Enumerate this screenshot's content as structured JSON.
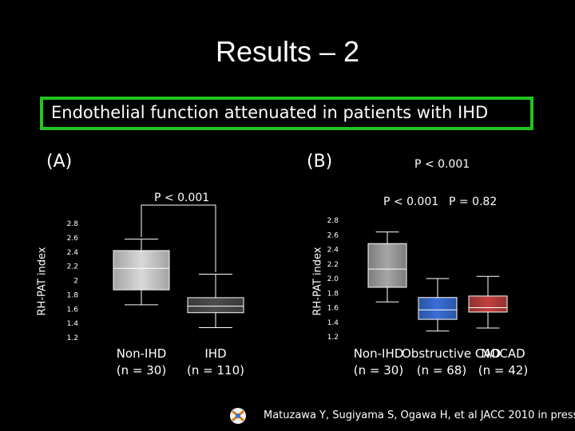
{
  "slide": {
    "title": "Results – 2",
    "banner": "Endothelial function attenuated in patients with IHD",
    "citation": "Matuzawa Y, Sugiyama S, Ogawa H, et al JACC 2010 in press",
    "colors": {
      "banner_border": "#22c422",
      "background": "#000000",
      "text": "#ffffff"
    }
  },
  "chart_data": [
    {
      "type": "box",
      "panel_label": "(A)",
      "ylabel": "RH-PAT index",
      "ylim": [
        1.2,
        2.8
      ],
      "yticks": [
        "2.8",
        "2.6",
        "2.4",
        "2.2",
        "2",
        "1.8",
        "1.6",
        "1.4",
        "1.2"
      ],
      "significance": [
        "P < 0.001"
      ],
      "categories": [
        {
          "name": "Non-IHD",
          "n": "(n = 30)"
        },
        {
          "name": "IHD",
          "n": "(n = 110)"
        }
      ],
      "series": [
        {
          "name": "Non-IHD",
          "whisker_low": 1.66,
          "q1": 1.87,
          "median": 2.17,
          "q3": 2.42,
          "whisker_high": 2.58,
          "color": "#d9d9d9"
        },
        {
          "name": "IHD",
          "whisker_low": 1.34,
          "q1": 1.55,
          "median": 1.64,
          "q3": 1.76,
          "whisker_high": 2.09,
          "color": "#4d4d4d"
        }
      ]
    },
    {
      "type": "box",
      "panel_label": "(B)",
      "ylabel": "RH-PAT index",
      "ylim": [
        1.2,
        2.8
      ],
      "yticks": [
        "2.8",
        "2.6",
        "2.4",
        "2.2",
        "2.0",
        "1.8",
        "1.6",
        "1.4",
        "1.2"
      ],
      "significance": [
        "P < 0.001",
        "P < 0.001",
        "P = 0.82"
      ],
      "categories": [
        {
          "name": "Non-IHD",
          "n": "(n = 30)"
        },
        {
          "name": "Obstructive CAD",
          "n": "(n = 68)"
        },
        {
          "name": "NOCAD",
          "n": "(n = 42)"
        }
      ],
      "series": [
        {
          "name": "Non-IHD",
          "whisker_low": 1.68,
          "q1": 1.88,
          "median": 2.13,
          "q3": 2.48,
          "whisker_high": 2.64,
          "color": "#a6a6a6"
        },
        {
          "name": "Obstructive CAD",
          "whisker_low": 1.28,
          "q1": 1.44,
          "median": 1.57,
          "q3": 1.74,
          "whisker_high": 2.0,
          "color": "#3a6fd8"
        },
        {
          "name": "NOCAD",
          "whisker_low": 1.32,
          "q1": 1.54,
          "median": 1.6,
          "q3": 1.76,
          "whisker_high": 2.03,
          "color": "#c0413e"
        }
      ]
    }
  ]
}
